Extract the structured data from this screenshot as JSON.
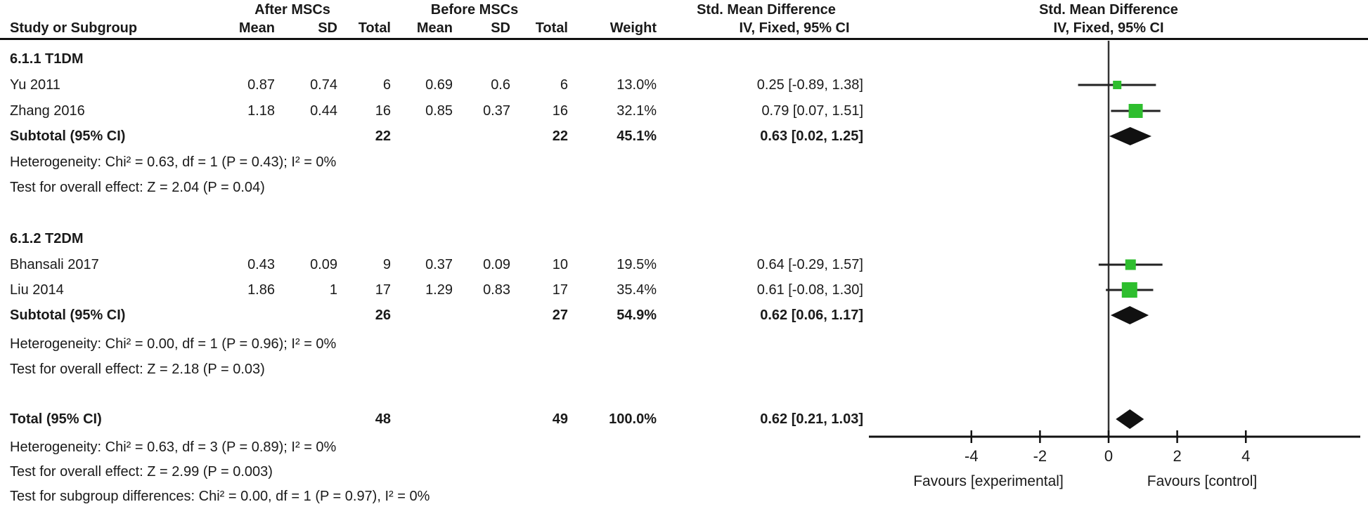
{
  "colors": {
    "marker_green": "#2EBE2E",
    "diamond_black": "#111111",
    "line_black": "#222222",
    "text": "#1a1a1a"
  },
  "header": {
    "group_after": "After MSCs",
    "group_before": "Before MSCs",
    "smd_text": "Std. Mean Difference",
    "smd_plot": "Std. Mean Difference",
    "method_text": "IV, Fixed, 95% CI",
    "method_plot": "IV, Fixed, 95% CI",
    "col_study": "Study or Subgroup",
    "col_mean1": "Mean",
    "col_sd1": "SD",
    "col_total1": "Total",
    "col_mean2": "Mean",
    "col_sd2": "SD",
    "col_total2": "Total",
    "col_weight": "Weight"
  },
  "sections": [
    {
      "label": "6.1.1 T1DM",
      "studies": [
        {
          "name": "Yu  2011",
          "mean1": "0.87",
          "sd1": "0.74",
          "total1": "6",
          "mean2": "0.69",
          "sd2": "0.6",
          "total2": "6",
          "weight": "13.0%",
          "ci": "0.25 [-0.89, 1.38]"
        },
        {
          "name": "Zhang 2016",
          "mean1": "1.18",
          "sd1": "0.44",
          "total1": "16",
          "mean2": "0.85",
          "sd2": "0.37",
          "total2": "16",
          "weight": "32.1%",
          "ci": "0.79 [0.07, 1.51]"
        }
      ],
      "subtotal": {
        "label": "Subtotal (95% CI)",
        "total1": "22",
        "total2": "22",
        "weight": "45.1%",
        "ci": "0.63 [0.02, 1.25]"
      },
      "heterogeneity": "Heterogeneity: Chi² = 0.63, df = 1 (P = 0.43); I² = 0%",
      "overall_effect": "Test for overall effect: Z = 2.04 (P = 0.04)"
    },
    {
      "label": "6.1.2 T2DM",
      "studies": [
        {
          "name": "Bhansali 2017",
          "mean1": "0.43",
          "sd1": "0.09",
          "total1": "9",
          "mean2": "0.37",
          "sd2": "0.09",
          "total2": "10",
          "weight": "19.5%",
          "ci": "0.64 [-0.29, 1.57]"
        },
        {
          "name": "Liu 2014",
          "mean1": "1.86",
          "sd1": "1",
          "total1": "17",
          "mean2": "1.29",
          "sd2": "0.83",
          "total2": "17",
          "weight": "35.4%",
          "ci": "0.61 [-0.08, 1.30]"
        }
      ],
      "subtotal": {
        "label": "Subtotal (95% CI)",
        "total1": "26",
        "total2": "27",
        "weight": "54.9%",
        "ci": "0.62 [0.06, 1.17]"
      },
      "heterogeneity": "Heterogeneity: Chi² = 0.00, df = 1 (P = 0.96); I² = 0%",
      "overall_effect": "Test for overall effect: Z = 2.18 (P = 0.03)"
    }
  ],
  "total": {
    "label": "Total (95% CI)",
    "total1": "48",
    "total2": "49",
    "weight": "100.0%",
    "ci": "0.62 [0.21, 1.03]",
    "heterogeneity": "Heterogeneity: Chi² = 0.63, df = 3 (P = 0.89); I² = 0%",
    "overall_effect": "Test for overall effect: Z = 2.99 (P = 0.003)",
    "subgroup_diff": "Test for subgroup differences: Chi² = 0.00, df = 1 (P = 0.97), I² = 0%"
  },
  "chart_data": {
    "type": "forest",
    "title": "Std. Mean Difference, IV, Fixed, 95% CI",
    "x_axis": {
      "ticks": [
        -4,
        -2,
        0,
        2,
        4
      ],
      "range": [
        -7,
        7.3
      ],
      "zero_line": 0,
      "label_left": "Favours [experimental]",
      "label_right": "Favours [control]"
    },
    "studies": [
      {
        "name": "Yu 2011",
        "group": "T1DM",
        "est": 0.25,
        "ci_low": -0.89,
        "ci_high": 1.38,
        "weight_pct": 13.0
      },
      {
        "name": "Zhang 2016",
        "group": "T1DM",
        "est": 0.79,
        "ci_low": 0.07,
        "ci_high": 1.51,
        "weight_pct": 32.1
      },
      {
        "name": "Bhansali 2017",
        "group": "T2DM",
        "est": 0.64,
        "ci_low": -0.29,
        "ci_high": 1.57,
        "weight_pct": 19.5
      },
      {
        "name": "Liu 2014",
        "group": "T2DM",
        "est": 0.61,
        "ci_low": -0.08,
        "ci_high": 1.3,
        "weight_pct": 35.4
      }
    ],
    "pooled": [
      {
        "name": "Subtotal T1DM (95% CI)",
        "est": 0.63,
        "ci_low": 0.02,
        "ci_high": 1.25
      },
      {
        "name": "Subtotal T2DM (95% CI)",
        "est": 0.62,
        "ci_low": 0.06,
        "ci_high": 1.17
      },
      {
        "name": "Total (95% CI)",
        "est": 0.62,
        "ci_low": 0.21,
        "ci_high": 1.03
      }
    ]
  }
}
